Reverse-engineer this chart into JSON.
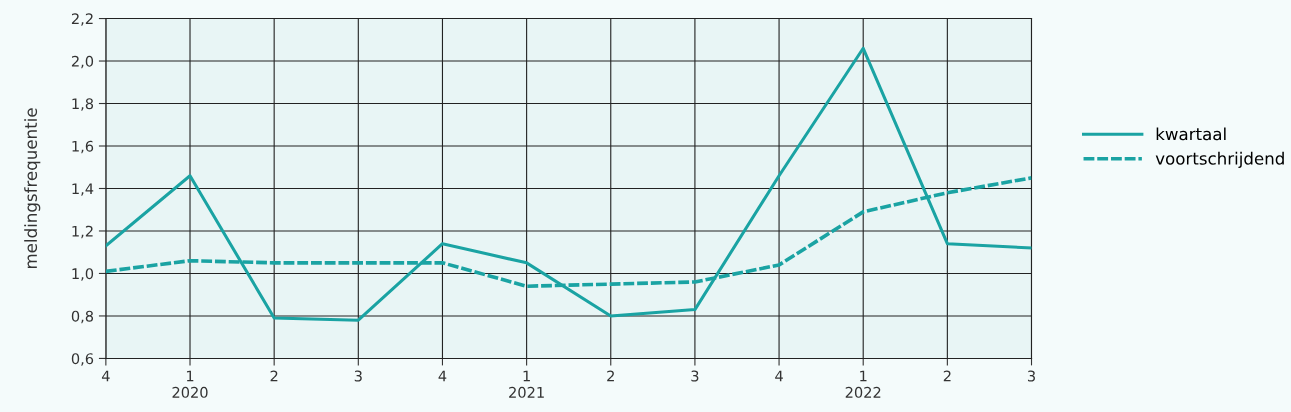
{
  "chart_data": {
    "type": "line",
    "ylabel": "meldingsfrequentie",
    "categories": [
      "4",
      "1\n2020",
      "2",
      "3",
      "4",
      "1\n2021",
      "2",
      "3",
      "4",
      "1\n2022",
      "2",
      "3"
    ],
    "series": [
      {
        "name": "kwartaal",
        "color": "#1aa3a3",
        "line_style": "solid",
        "values": [
          1.13,
          1.46,
          0.79,
          0.78,
          1.14,
          1.05,
          0.8,
          0.83,
          1.46,
          2.06,
          1.14,
          1.12
        ]
      },
      {
        "name": "voortschrijdend",
        "color": "#1aa3a3",
        "line_style": "dashed",
        "values": [
          1.01,
          1.06,
          1.05,
          1.05,
          1.05,
          0.94,
          0.95,
          0.96,
          1.04,
          1.29,
          1.38,
          1.45
        ]
      }
    ],
    "ylim": [
      0.6,
      2.2
    ],
    "yticks": [
      {
        "value": 0.6,
        "label": "0,6"
      },
      {
        "value": 0.8,
        "label": "0,8"
      },
      {
        "value": 1.0,
        "label": "1,0"
      },
      {
        "value": 1.2,
        "label": "1,2"
      },
      {
        "value": 1.4,
        "label": "1,4"
      },
      {
        "value": 1.6,
        "label": "1,6"
      },
      {
        "value": 1.8,
        "label": "1,8"
      },
      {
        "value": 2.0,
        "label": "2,0"
      },
      {
        "value": 2.2,
        "label": "2,2"
      }
    ],
    "grid": true,
    "legend": "right",
    "marker": "none"
  }
}
